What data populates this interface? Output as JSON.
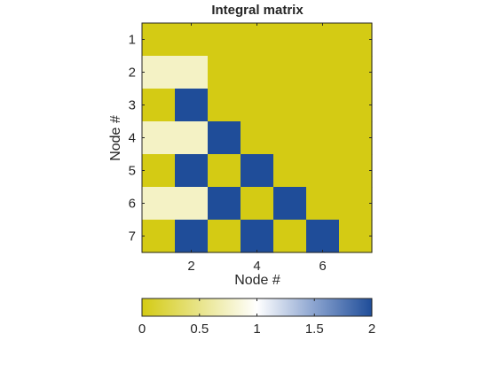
{
  "chart_data": {
    "type": "heatmap",
    "title": "Integral matrix",
    "xlabel": "Node #",
    "ylabel": "Node #",
    "x": [
      1,
      2,
      3,
      4,
      5,
      6,
      7
    ],
    "y": [
      1,
      2,
      3,
      4,
      5,
      6,
      7
    ],
    "x_tick_labels": [
      "2",
      "4",
      "6"
    ],
    "y_tick_labels": [
      "1",
      "2",
      "3",
      "4",
      "5",
      "6",
      "7"
    ],
    "values": [
      [
        0,
        0,
        0,
        0,
        0,
        0,
        0
      ],
      [
        0.75,
        0.75,
        0,
        0,
        0,
        0,
        0
      ],
      [
        0,
        2,
        0,
        0,
        0,
        0,
        0
      ],
      [
        0.75,
        0.75,
        2,
        0,
        0,
        0,
        0
      ],
      [
        0,
        2,
        0,
        2,
        0,
        0,
        0
      ],
      [
        0.75,
        0.75,
        2,
        0,
        2,
        0,
        0
      ],
      [
        0,
        2,
        0,
        2,
        0,
        2,
        0
      ]
    ],
    "clim": [
      0,
      2
    ],
    "colormap": {
      "stops": [
        0,
        0.5,
        1,
        1.5,
        2
      ],
      "colors": [
        "#d4cb14",
        "#e8e48a",
        "#ffffff",
        "#8aa3cf",
        "#1f4d99"
      ]
    },
    "colorbar": {
      "location": "below",
      "ticks": [
        0,
        0.5,
        1,
        1.5,
        2
      ],
      "tick_labels": [
        "0",
        "0.5",
        "1",
        "1.5",
        "2"
      ]
    },
    "grid": false,
    "legend": false
  }
}
